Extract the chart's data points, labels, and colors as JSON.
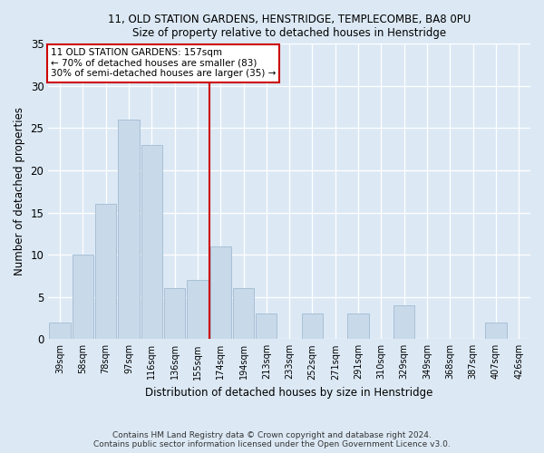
{
  "title1": "11, OLD STATION GARDENS, HENSTRIDGE, TEMPLECOMBE, BA8 0PU",
  "title2": "Size of property relative to detached houses in Henstridge",
  "xlabel": "Distribution of detached houses by size in Henstridge",
  "ylabel": "Number of detached properties",
  "footnote1": "Contains HM Land Registry data © Crown copyright and database right 2024.",
  "footnote2": "Contains public sector information licensed under the Open Government Licence v3.0.",
  "bar_labels": [
    "39sqm",
    "58sqm",
    "78sqm",
    "97sqm",
    "116sqm",
    "136sqm",
    "155sqm",
    "174sqm",
    "194sqm",
    "213sqm",
    "233sqm",
    "252sqm",
    "271sqm",
    "291sqm",
    "310sqm",
    "329sqm",
    "349sqm",
    "368sqm",
    "387sqm",
    "407sqm",
    "426sqm"
  ],
  "bar_values": [
    2,
    10,
    16,
    26,
    23,
    6,
    7,
    11,
    6,
    3,
    0,
    3,
    0,
    3,
    0,
    4,
    0,
    0,
    0,
    2,
    0
  ],
  "bar_color": "#c8d9ea",
  "bar_edgecolor": "#a8c0d6",
  "vline_index": 6.5,
  "vline_color": "#cc0000",
  "annotation_title": "11 OLD STATION GARDENS: 157sqm",
  "annotation_line1": "← 70% of detached houses are smaller (83)",
  "annotation_line2": "30% of semi-detached houses are larger (35) →",
  "annotation_box_edgecolor": "#cc0000",
  "ylim": [
    0,
    35
  ],
  "yticks": [
    0,
    5,
    10,
    15,
    20,
    25,
    30,
    35
  ],
  "background_color": "#dce9f5",
  "plot_bg_color": "#dce9f5"
}
